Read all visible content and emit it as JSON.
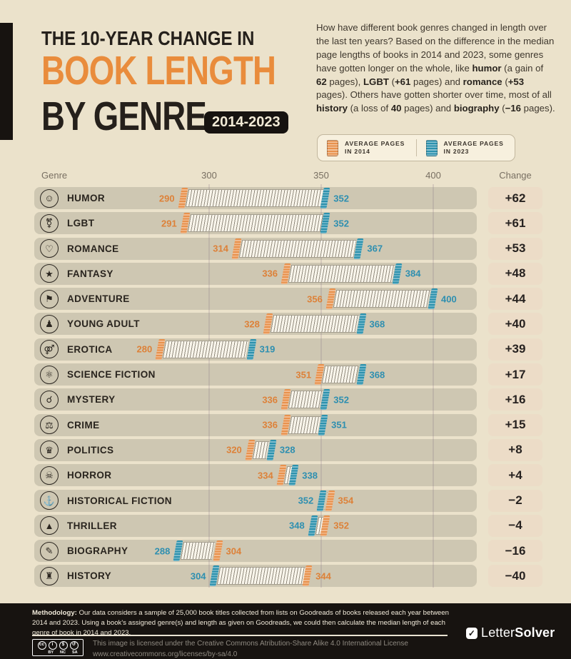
{
  "header": {
    "title_line1": "THE 10-YEAR CHANGE IN",
    "title_line2": "BOOK LENGTH",
    "title_line3": "BY GENRE",
    "year_badge": "2014-2023"
  },
  "intro": {
    "segments": [
      {
        "t": "How have different book genres changed in length over the last ten years? Based on the difference in the median page lengths of books in 2014 and 2023, some genres have gotten longer on the whole, like "
      },
      {
        "t": "humor",
        "b": true
      },
      {
        "t": " (a gain of "
      },
      {
        "t": "62",
        "b": true
      },
      {
        "t": " pages), "
      },
      {
        "t": "LGBT",
        "b": true
      },
      {
        "t": " ("
      },
      {
        "t": "+61",
        "b": true
      },
      {
        "t": " pages) and "
      },
      {
        "t": "romance",
        "b": true
      },
      {
        "t": " ("
      },
      {
        "t": "+53",
        "b": true
      },
      {
        "t": " pages). Others have gotten shorter over time, most of all "
      },
      {
        "t": "history",
        "b": true
      },
      {
        "t": " (a loss of "
      },
      {
        "t": "40",
        "b": true
      },
      {
        "t": " pages) and "
      },
      {
        "t": "biography",
        "b": true
      },
      {
        "t": " (",
        "b": false
      },
      {
        "t": "−16",
        "b": true
      },
      {
        "t": " pages)."
      }
    ]
  },
  "legend": {
    "items": [
      {
        "icon": "orange-book-icon",
        "label_line1": "AVERAGE PAGES",
        "label_line2": "IN 2014"
      },
      {
        "icon": "teal-book-icon",
        "label_line1": "AVERAGE PAGES",
        "label_line2": "IN 2023"
      }
    ]
  },
  "axis": {
    "genre_label": "Genre",
    "change_label": "Change"
  },
  "colors": {
    "accent_2014": "#e8914c",
    "accent_2023": "#2b91ad",
    "label_2014": "#dd8138",
    "label_2023": "#2e8fb0",
    "title_orange": "#e98c3c",
    "dark": "#25201b"
  },
  "chart_data": {
    "type": "bar",
    "title": "The 10-year change in book length by genre (2014-2023)",
    "xlabel": "Average pages",
    "x_ticks": [
      300,
      350,
      400
    ],
    "series_names": [
      "Average pages in 2014",
      "Average pages in 2023"
    ],
    "rows": [
      {
        "genre": "HUMOR",
        "icon": "laughing-face-icon",
        "pages_2014": 290,
        "pages_2023": 352,
        "change": "+62"
      },
      {
        "genre": "LGBT",
        "icon": "transgender-icon",
        "pages_2014": 291,
        "pages_2023": 352,
        "change": "+61"
      },
      {
        "genre": "ROMANCE",
        "icon": "heart-icon",
        "pages_2014": 314,
        "pages_2023": 367,
        "change": "+53"
      },
      {
        "genre": "FANTASY",
        "icon": "magic-wand-icon",
        "pages_2014": 336,
        "pages_2023": 384,
        "change": "+48"
      },
      {
        "genre": "ADVENTURE",
        "icon": "hiker-icon",
        "pages_2014": 356,
        "pages_2023": 400,
        "change": "+44"
      },
      {
        "genre": "YOUNG ADULT",
        "icon": "group-of-people-icon",
        "pages_2014": 328,
        "pages_2023": 368,
        "change": "+40"
      },
      {
        "genre": "EROTICA",
        "icon": "lips-icon",
        "pages_2014": 280,
        "pages_2023": 319,
        "change": "+39"
      },
      {
        "genre": "SCIENCE FICTION",
        "icon": "atom-icon",
        "pages_2014": 351,
        "pages_2023": 368,
        "change": "+17"
      },
      {
        "genre": "MYSTERY",
        "icon": "scroll-magnifier-icon",
        "pages_2014": 336,
        "pages_2023": 352,
        "change": "+16"
      },
      {
        "genre": "CRIME",
        "icon": "burglar-face-icon",
        "pages_2014": 336,
        "pages_2023": 351,
        "change": "+15"
      },
      {
        "genre": "POLITICS",
        "icon": "capitol-building-icon",
        "pages_2014": 320,
        "pages_2023": 328,
        "change": "+8"
      },
      {
        "genre": "HORROR",
        "icon": "skull-crossbones-icon",
        "pages_2014": 334,
        "pages_2023": 338,
        "change": "+4"
      },
      {
        "genre": "HISTORICAL FICTION",
        "icon": "galleon-ship-icon",
        "pages_2014": 354,
        "pages_2023": 352,
        "change": "−2"
      },
      {
        "genre": "THRILLER",
        "icon": "shark-fin-icon",
        "pages_2014": 352,
        "pages_2023": 348,
        "change": "−4"
      },
      {
        "genre": "BIOGRAPHY",
        "icon": "quill-pen-icon",
        "pages_2014": 304,
        "pages_2023": 288,
        "change": "−16"
      },
      {
        "genre": "HISTORY",
        "icon": "castle-icon",
        "pages_2014": 344,
        "pages_2023": 304,
        "change": "−40"
      }
    ]
  },
  "footer": {
    "methodology_bold": "Methodology:",
    "methodology_text": "Our data considers a sample of 25,000 book titles collected from lists on Goodreads of books released each year between 2014 and 2023. Using a book's assigned genre(s) and length as given on Goodreads, we could then calculate the median length of each genre of book in 2014 and 2023.",
    "cc_circles": [
      "cc",
      "i",
      "$",
      "↺"
    ],
    "cc_labels": [
      "BY",
      "NC",
      "SA"
    ],
    "license_line1": "This image is licensed under the Creative Commons Atribution-Share Alike 4.0 International License",
    "license_line2": "www.creativecommons.org/licenses/by-sa/4.0",
    "brand_regular": "Letter",
    "brand_bold": "Solver"
  }
}
